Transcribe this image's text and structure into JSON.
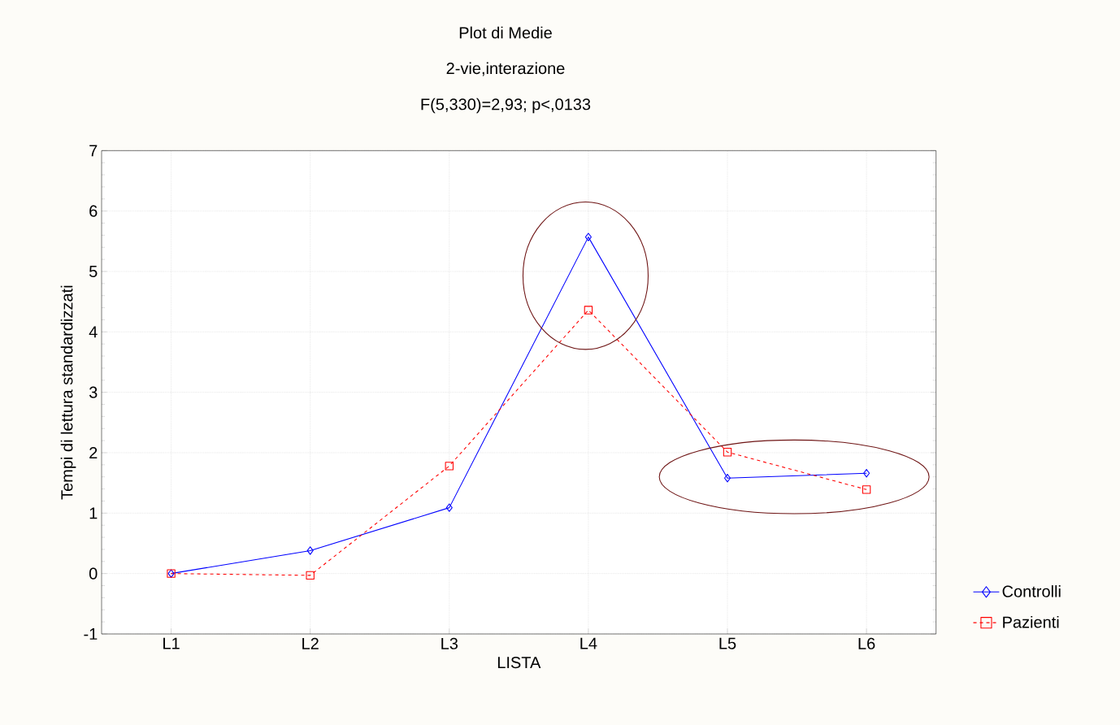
{
  "chart_data": {
    "type": "line",
    "title": "Plot di Medie",
    "subtitle": "2-vie,interazione",
    "annotations": [
      "F(5,330)=2,93; p<,0133"
    ],
    "xlabel": "LISTA",
    "ylabel": "Tempi di lettura standardizzati",
    "categories": [
      "L1",
      "L2",
      "L3",
      "L4",
      "L5",
      "L6"
    ],
    "series": [
      {
        "name": "Controlli",
        "color": "#0000ff",
        "marker": "diamond",
        "line_style": "solid",
        "values": [
          0,
          0.38,
          1.09,
          5.57,
          1.58,
          1.66
        ]
      },
      {
        "name": "Pazienti",
        "color": "#ff0000",
        "marker": "square",
        "line_style": "dashed",
        "values": [
          0,
          -0.03,
          1.78,
          4.36,
          2.01,
          1.39
        ]
      }
    ],
    "ylim": [
      -1,
      7
    ],
    "yticks": [
      -1,
      0,
      1,
      2,
      3,
      4,
      5,
      6,
      7
    ],
    "grid": true,
    "legend": "bottom right"
  }
}
